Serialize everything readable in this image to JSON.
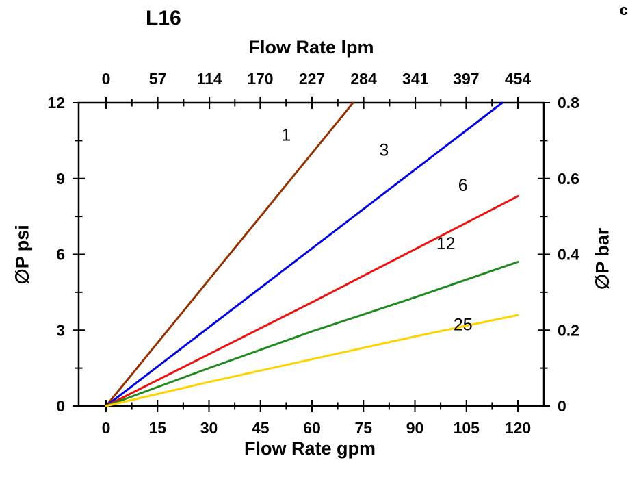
{
  "page": {
    "corner_text": "c"
  },
  "chart_data": {
    "type": "line",
    "title": "L16",
    "legend": "none",
    "grid": false,
    "axes": {
      "top": {
        "label": "Flow Rate lpm",
        "ticks": [
          0,
          57,
          114,
          170,
          227,
          284,
          341,
          397,
          454
        ],
        "max": 454
      },
      "bottom": {
        "label": "Flow Rate gpm",
        "ticks": [
          0,
          15,
          30,
          45,
          60,
          75,
          90,
          105,
          120
        ],
        "max": 120
      },
      "left": {
        "label": "∅P psi",
        "ticks": [
          0,
          3,
          6,
          9,
          12
        ],
        "max": 12
      },
      "right": {
        "label": "∅P bar",
        "ticks": [
          0,
          0.2,
          0.4,
          0.6,
          0.8
        ],
        "max": 0.8
      }
    },
    "series": [
      {
        "name": "1",
        "color": "#943101",
        "points": [
          [
            0,
            0
          ],
          [
            72,
            12
          ]
        ],
        "label_at": [
          52.5,
          10.5
        ]
      },
      {
        "name": "3",
        "color": "#0000E0",
        "points": [
          [
            0,
            0
          ],
          [
            115.5,
            12
          ]
        ],
        "label_at": [
          81,
          9.9
        ]
      },
      {
        "name": "6",
        "color": "#EE1111",
        "points": [
          [
            0,
            0
          ],
          [
            60,
            4.1
          ],
          [
            120,
            8.3
          ]
        ],
        "label_at": [
          104,
          8.5
        ]
      },
      {
        "name": "12",
        "color": "#1F8B1F",
        "points": [
          [
            0,
            0
          ],
          [
            30,
            1.5
          ],
          [
            60,
            2.95
          ],
          [
            90,
            4.3
          ],
          [
            120,
            5.7
          ]
        ],
        "label_at": [
          99,
          6.2
        ]
      },
      {
        "name": "25",
        "color": "#FFD300",
        "points": [
          [
            0,
            0
          ],
          [
            30,
            0.95
          ],
          [
            60,
            1.85
          ],
          [
            90,
            2.75
          ],
          [
            120,
            3.6
          ]
        ],
        "label_at": [
          104,
          3.0
        ]
      }
    ]
  }
}
